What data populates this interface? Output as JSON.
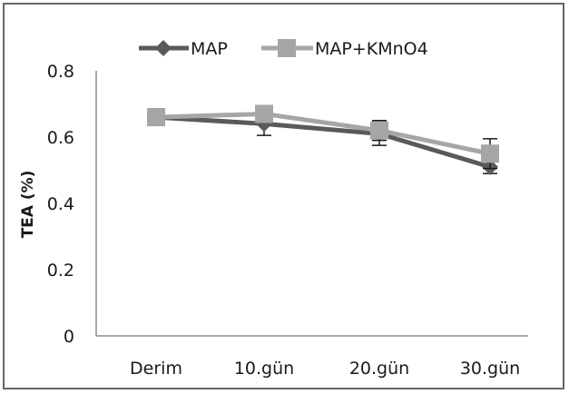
{
  "chart_data": {
    "type": "line",
    "categories": [
      "Derim",
      "10.gün",
      "20.gün",
      "30.gün"
    ],
    "ylabel": "TEA (%)",
    "xlabel": "",
    "ylim": [
      0,
      0.8
    ],
    "yticks": [
      "0",
      "0.2",
      "0.4",
      "0.6",
      "0.8"
    ],
    "grid": false,
    "legend": "top",
    "series": [
      {
        "name": "MAP",
        "values": [
          0.66,
          0.64,
          0.61,
          0.51
        ],
        "errors": [
          0.025,
          0.035,
          0.035,
          0.02
        ],
        "color": "#5a5a5a",
        "marker": "diamond"
      },
      {
        "name": "MAP+KMnO4",
        "values": [
          0.66,
          0.67,
          0.62,
          0.55
        ],
        "errors": [
          0.025,
          0.015,
          0.03,
          0.045
        ],
        "color": "#a6a6a6",
        "marker": "square"
      }
    ]
  }
}
